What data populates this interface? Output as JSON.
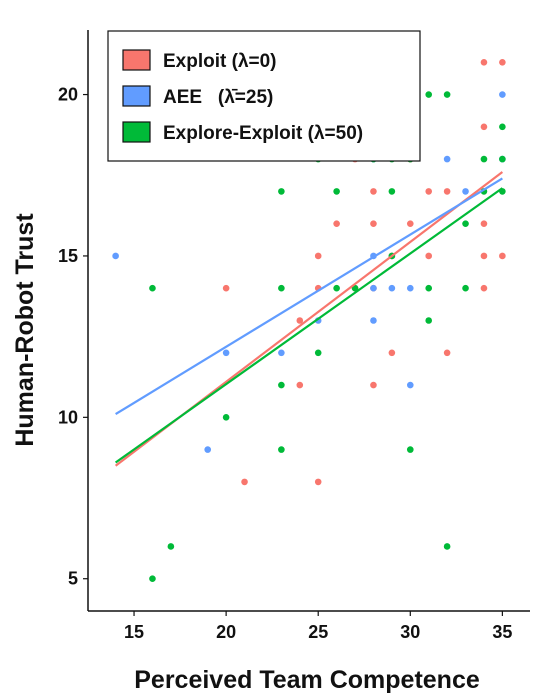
{
  "chart_data": {
    "type": "scatter",
    "xlabel": "Perceived Team Competence",
    "ylabel": "Human-Robot Trust",
    "xlim": [
      12.5,
      36.5
    ],
    "ylim": [
      4,
      22
    ],
    "xticks": [
      15,
      20,
      25,
      30,
      35
    ],
    "yticks": [
      5,
      10,
      15,
      20
    ],
    "grid": false,
    "legend_position": "top-left",
    "series": [
      {
        "name": "Exploit (λ=0)",
        "color": "#f8766d",
        "trend": [
          [
            14,
            8.5
          ],
          [
            35,
            17.6
          ]
        ],
        "points": [
          [
            20,
            14
          ],
          [
            21,
            8
          ],
          [
            24,
            13
          ],
          [
            24,
            11
          ],
          [
            25,
            15
          ],
          [
            25,
            14
          ],
          [
            25,
            8
          ],
          [
            26,
            16
          ],
          [
            27,
            18
          ],
          [
            27,
            14
          ],
          [
            28,
            17
          ],
          [
            28,
            16
          ],
          [
            28,
            14
          ],
          [
            28,
            11
          ],
          [
            29,
            15
          ],
          [
            29,
            12
          ],
          [
            30,
            18
          ],
          [
            30,
            16
          ],
          [
            31,
            17
          ],
          [
            31,
            15
          ],
          [
            32,
            17
          ],
          [
            32,
            12
          ],
          [
            34,
            21
          ],
          [
            34,
            19
          ],
          [
            34,
            16
          ],
          [
            34,
            15
          ],
          [
            34,
            14
          ],
          [
            35,
            21
          ],
          [
            35,
            15
          ]
        ]
      },
      {
        "name": "AEE   (λ̄=25)",
        "color": "#619cff",
        "trend": [
          [
            14,
            10.1
          ],
          [
            35,
            17.4
          ]
        ],
        "points": [
          [
            14,
            15
          ],
          [
            19,
            9
          ],
          [
            20,
            12
          ],
          [
            23,
            12
          ],
          [
            25,
            13
          ],
          [
            28,
            18
          ],
          [
            28,
            15
          ],
          [
            28,
            14
          ],
          [
            28,
            13
          ],
          [
            29,
            21
          ],
          [
            29,
            14
          ],
          [
            30,
            20
          ],
          [
            30,
            14
          ],
          [
            30,
            11
          ],
          [
            32,
            18
          ],
          [
            33,
            17
          ],
          [
            35,
            20
          ],
          [
            35,
            18
          ]
        ]
      },
      {
        "name": "Explore-Exploit (λ=50)",
        "color": "#00ba38",
        "trend": [
          [
            14,
            8.6
          ],
          [
            35,
            17.1
          ]
        ],
        "points": [
          [
            16,
            14
          ],
          [
            16,
            5
          ],
          [
            17,
            6
          ],
          [
            20,
            10
          ],
          [
            23,
            17
          ],
          [
            23,
            14
          ],
          [
            23,
            11
          ],
          [
            23,
            9
          ],
          [
            25,
            18
          ],
          [
            25,
            12
          ],
          [
            26,
            17
          ],
          [
            26,
            14
          ],
          [
            27,
            14
          ],
          [
            28,
            18
          ],
          [
            29,
            18
          ],
          [
            29,
            17
          ],
          [
            29,
            15
          ],
          [
            30,
            18
          ],
          [
            30,
            9
          ],
          [
            31,
            20
          ],
          [
            31,
            14
          ],
          [
            31,
            13
          ],
          [
            32,
            20
          ],
          [
            32,
            6
          ],
          [
            33,
            16
          ],
          [
            33,
            14
          ],
          [
            34,
            18
          ],
          [
            34,
            17
          ],
          [
            35,
            19
          ],
          [
            35,
            18
          ],
          [
            35,
            17
          ]
        ]
      }
    ]
  }
}
